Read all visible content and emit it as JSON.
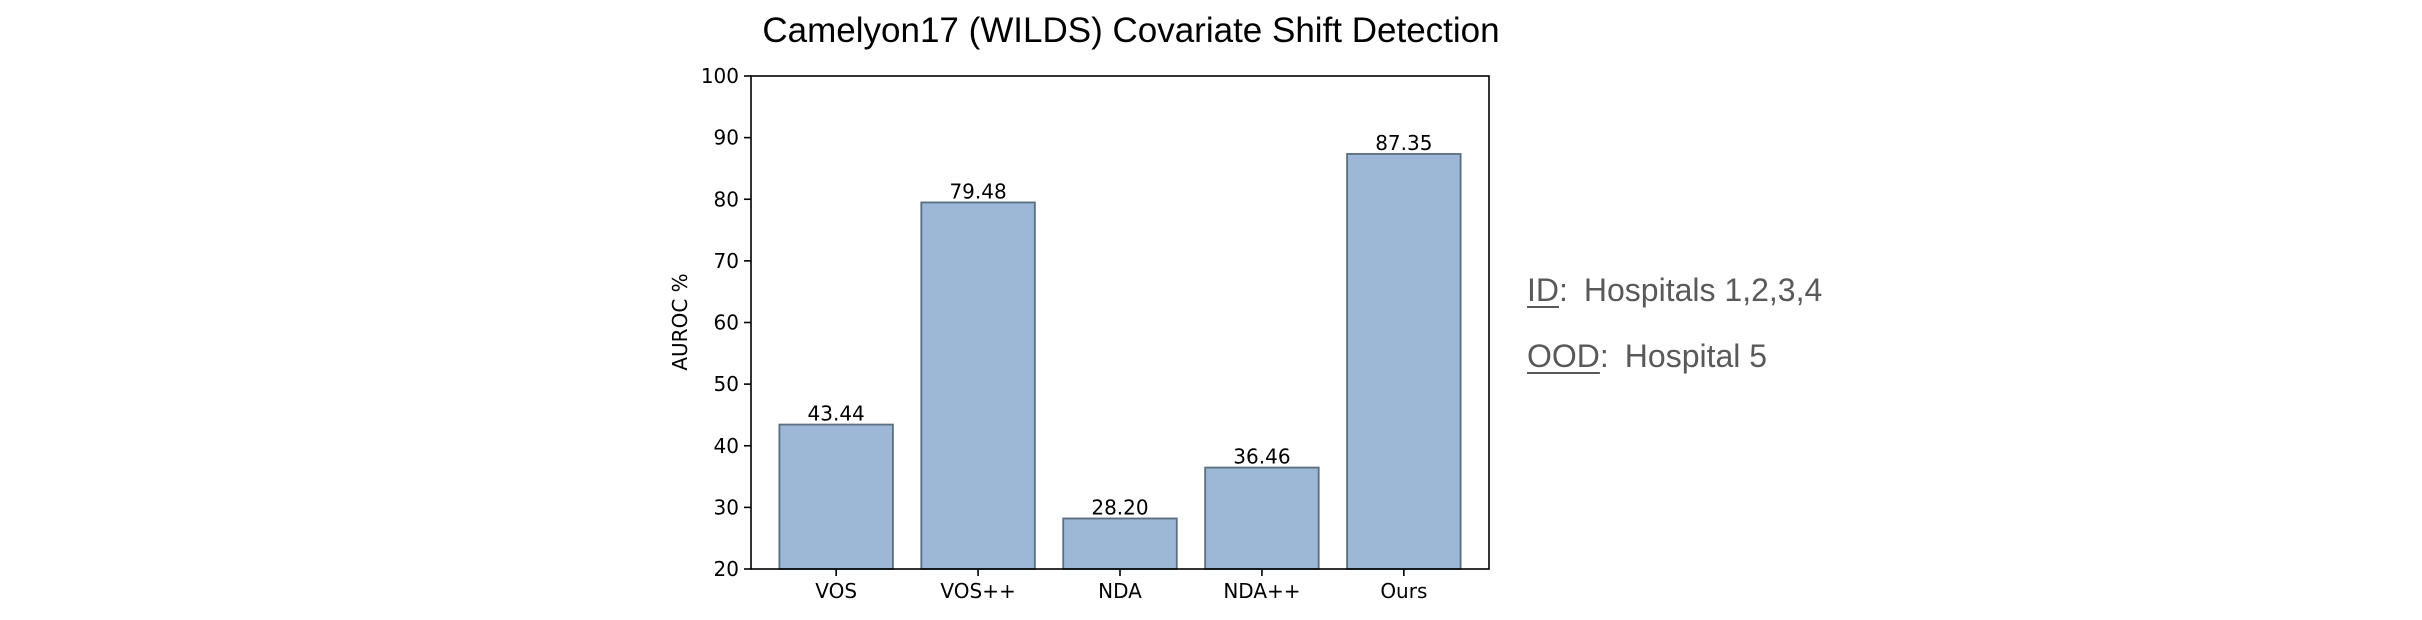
{
  "chart_data": {
    "type": "bar",
    "title": "Camelyon17 (WILDS) Covariate Shift Detection",
    "xlabel": "",
    "ylabel": "AUROC %",
    "categories": [
      "VOS",
      "VOS++",
      "NDA",
      "NDA++",
      "Ours"
    ],
    "values": [
      43.44,
      79.48,
      28.2,
      36.46,
      87.35
    ],
    "value_labels": [
      "43.44",
      "79.48",
      "28.20",
      "36.46",
      "87.35"
    ],
    "ylim": [
      20,
      100
    ],
    "yticks": [
      20,
      30,
      40,
      50,
      60,
      70,
      80,
      90,
      100
    ],
    "grid": false,
    "bar_color": "#9db8d7",
    "bar_edge_color": "#5a6e80"
  },
  "legend": {
    "id_key": "ID",
    "id_text": "Hospitals 1,2,3,4",
    "ood_key": "OOD",
    "ood_text": "Hospital 5",
    "text_color": "#595959"
  }
}
